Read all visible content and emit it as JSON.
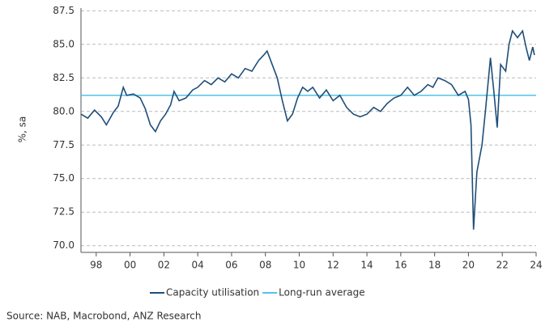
{
  "chart_data": {
    "type": "line",
    "y_label": "%, sa",
    "source": "Source: NAB, Macrobond, ANZ Research",
    "x": [
      1997.1,
      1997.5,
      1997.9,
      1998.3,
      1998.6,
      1999.0,
      1999.3,
      1999.6,
      1999.8,
      2000.2,
      2000.6,
      2000.9,
      2001.2,
      2001.5,
      2001.8,
      2002.1,
      2002.4,
      2002.6,
      2002.9,
      2003.3,
      2003.7,
      2004.0,
      2004.4,
      2004.8,
      2005.2,
      2005.6,
      2006.0,
      2006.4,
      2006.8,
      2007.2,
      2007.6,
      2007.9,
      2008.1,
      2008.4,
      2008.7,
      2009.0,
      2009.3,
      2009.6,
      2009.9,
      2010.2,
      2010.5,
      2010.8,
      2011.2,
      2011.6,
      2012.0,
      2012.4,
      2012.8,
      2013.2,
      2013.6,
      2014.0,
      2014.4,
      2014.8,
      2015.2,
      2015.6,
      2016.0,
      2016.4,
      2016.8,
      2017.2,
      2017.6,
      2017.9,
      2018.2,
      2018.6,
      2019.0,
      2019.4,
      2019.8,
      2020.0,
      2020.15,
      2020.3,
      2020.5,
      2020.8,
      2021.0,
      2021.3,
      2021.5,
      2021.7,
      2021.9,
      2022.2,
      2022.4,
      2022.6,
      2022.9,
      2023.2,
      2023.4,
      2023.6,
      2023.8,
      2023.9
    ],
    "series": [
      {
        "name": "Capacity utilisation",
        "color": "#1f4e79",
        "values": [
          79.8,
          79.5,
          80.1,
          79.6,
          79.0,
          79.9,
          80.4,
          81.8,
          81.2,
          81.3,
          81.0,
          80.2,
          79.0,
          78.5,
          79.3,
          79.8,
          80.5,
          81.5,
          80.8,
          81.0,
          81.6,
          81.8,
          82.3,
          82.0,
          82.5,
          82.2,
          82.8,
          82.5,
          83.2,
          83.0,
          83.8,
          84.2,
          84.5,
          83.5,
          82.5,
          80.8,
          79.3,
          79.8,
          81.0,
          81.8,
          81.5,
          81.8,
          81.0,
          81.6,
          80.8,
          81.2,
          80.3,
          79.8,
          79.6,
          79.8,
          80.3,
          80.0,
          80.6,
          81.0,
          81.2,
          81.8,
          81.2,
          81.5,
          82.0,
          81.8,
          82.5,
          82.3,
          82.0,
          81.2,
          81.5,
          80.9,
          79.0,
          71.2,
          75.5,
          77.5,
          80.0,
          84.0,
          81.5,
          78.8,
          83.5,
          83.0,
          85.0,
          86.0,
          85.5,
          86.0,
          84.8,
          83.8,
          84.8,
          84.2
        ]
      },
      {
        "name": "Long-run average",
        "color": "#4fc3e8",
        "value": 81.2
      }
    ],
    "xlim": [
      1997.1,
      2024.0
    ],
    "xticks": [
      {
        "value": 1998,
        "label": "98"
      },
      {
        "value": 2000,
        "label": "00"
      },
      {
        "value": 2002,
        "label": "02"
      },
      {
        "value": 2004,
        "label": "04"
      },
      {
        "value": 2006,
        "label": "06"
      },
      {
        "value": 2008,
        "label": "08"
      },
      {
        "value": 2010,
        "label": "10"
      },
      {
        "value": 2012,
        "label": "12"
      },
      {
        "value": 2014,
        "label": "14"
      },
      {
        "value": 2016,
        "label": "16"
      },
      {
        "value": 2018,
        "label": "18"
      },
      {
        "value": 2020,
        "label": "20"
      },
      {
        "value": 2022,
        "label": "22"
      },
      {
        "value": 2024,
        "label": "24"
      }
    ],
    "ylim": [
      69.5,
      87.7
    ],
    "yticks": [
      {
        "value": 70,
        "label": "70.0"
      },
      72.5,
      {
        "value": 75,
        "label": "75.0"
      },
      77.5,
      {
        "value": 80,
        "label": "80.0"
      },
      82.5,
      {
        "value": 85,
        "label": "85.0"
      },
      87.5
    ],
    "grid": true
  }
}
